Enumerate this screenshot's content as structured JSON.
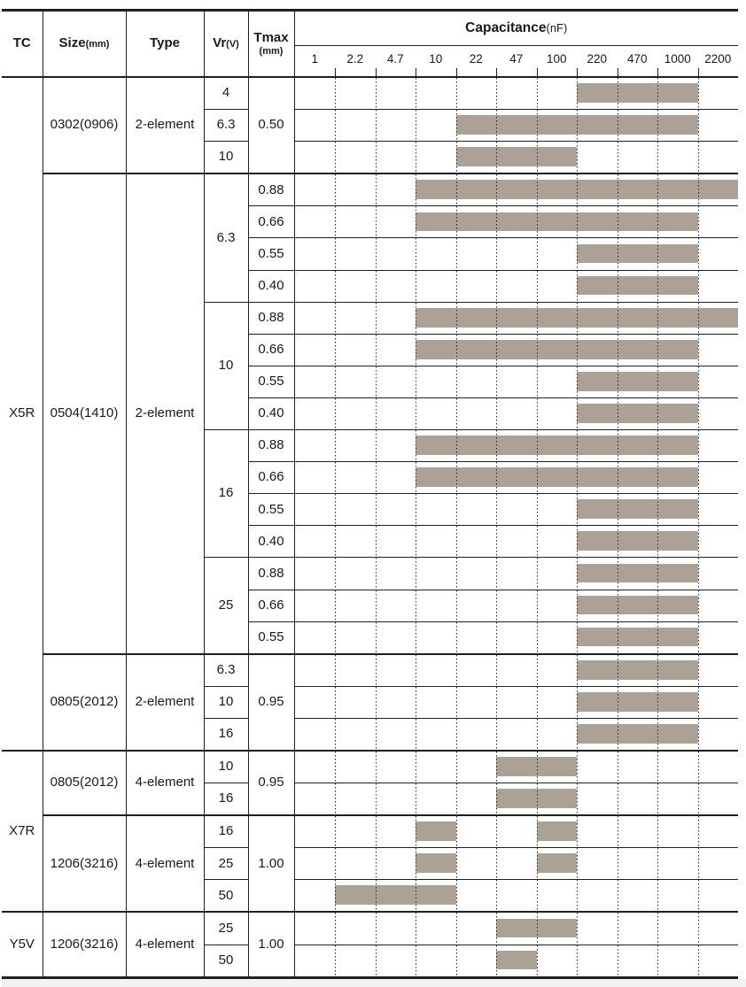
{
  "colors": {
    "bar": "#aca195",
    "border": "#1f1f1f",
    "grid_dot": "#2b2b2b",
    "footer_strip": "#f2f2f2",
    "text": "#1a1a1a"
  },
  "header": {
    "tc_label": "TC",
    "size_label": "Size",
    "size_unit": "(mm)",
    "type_label": "Type",
    "vr_label": "Vr",
    "vr_unit": "(V)",
    "tmax_label": "Tmax",
    "tmax_unit": "(mm)",
    "capacitance_label": "Capacitance",
    "capacitance_unit": "(nF)"
  },
  "chart_data": {
    "type": "range-bar",
    "x_scale": "log-categorical",
    "xlabel": "Capacitance(nF)",
    "scale_labels": [
      "1",
      "2.2",
      "4.7",
      "10",
      "22",
      "47",
      "100",
      "220",
      "470",
      "1000",
      "2200"
    ],
    "grid": "dotted-vertical-at-zone-boundaries",
    "bar_color": "#aca195",
    "sections": [
      {
        "tc": "X5R",
        "size_groups": [
          {
            "size": "0302(0906)",
            "type": "2-element",
            "tmax_shared": "0.50",
            "vr_groups": [
              {
                "vr": "4",
                "rows": [
                  {
                    "bars": [
                      [
                        "220",
                        "1000"
                      ]
                    ]
                  }
                ]
              },
              {
                "vr": "6.3",
                "rows": [
                  {
                    "bars": [
                      [
                        "22",
                        "1000"
                      ]
                    ]
                  }
                ]
              },
              {
                "vr": "10",
                "rows": [
                  {
                    "bars": [
                      [
                        "22",
                        "100"
                      ]
                    ]
                  }
                ]
              }
            ]
          },
          {
            "size": "0504(1410)",
            "type": "2-element",
            "vr_groups": [
              {
                "vr": "6.3",
                "rows": [
                  {
                    "tmax": "0.88",
                    "bars": [
                      [
                        "10",
                        "2200"
                      ]
                    ]
                  },
                  {
                    "tmax": "0.66",
                    "bars": [
                      [
                        "10",
                        "1000"
                      ]
                    ]
                  },
                  {
                    "tmax": "0.55",
                    "bars": [
                      [
                        "220",
                        "1000"
                      ]
                    ]
                  },
                  {
                    "tmax": "0.40",
                    "bars": [
                      [
                        "220",
                        "1000"
                      ]
                    ]
                  }
                ]
              },
              {
                "vr": "10",
                "rows": [
                  {
                    "tmax": "0.88",
                    "bars": [
                      [
                        "10",
                        "2200"
                      ]
                    ]
                  },
                  {
                    "tmax": "0.66",
                    "bars": [
                      [
                        "10",
                        "1000"
                      ]
                    ]
                  },
                  {
                    "tmax": "0.55",
                    "bars": [
                      [
                        "220",
                        "1000"
                      ]
                    ]
                  },
                  {
                    "tmax": "0.40",
                    "bars": [
                      [
                        "220",
                        "1000"
                      ]
                    ]
                  }
                ]
              },
              {
                "vr": "16",
                "rows": [
                  {
                    "tmax": "0.88",
                    "bars": [
                      [
                        "10",
                        "1000"
                      ]
                    ]
                  },
                  {
                    "tmax": "0.66",
                    "bars": [
                      [
                        "10",
                        "1000"
                      ]
                    ]
                  },
                  {
                    "tmax": "0.55",
                    "bars": [
                      [
                        "220",
                        "1000"
                      ]
                    ]
                  },
                  {
                    "tmax": "0.40",
                    "bars": [
                      [
                        "220",
                        "1000"
                      ]
                    ]
                  }
                ]
              },
              {
                "vr": "25",
                "rows": [
                  {
                    "tmax": "0.88",
                    "bars": [
                      [
                        "220",
                        "1000"
                      ]
                    ]
                  },
                  {
                    "tmax": "0.66",
                    "bars": [
                      [
                        "220",
                        "1000"
                      ]
                    ]
                  },
                  {
                    "tmax": "0.55",
                    "bars": [
                      [
                        "220",
                        "1000"
                      ]
                    ]
                  }
                ]
              }
            ]
          },
          {
            "size": "0805(2012)",
            "type": "2-element",
            "tmax_shared": "0.95",
            "vr_groups": [
              {
                "vr": "6.3",
                "rows": [
                  {
                    "bars": [
                      [
                        "220",
                        "1000"
                      ]
                    ]
                  }
                ]
              },
              {
                "vr": "10",
                "rows": [
                  {
                    "bars": [
                      [
                        "220",
                        "1000"
                      ]
                    ]
                  }
                ]
              },
              {
                "vr": "16",
                "rows": [
                  {
                    "bars": [
                      [
                        "220",
                        "1000"
                      ]
                    ]
                  }
                ]
              }
            ]
          }
        ]
      },
      {
        "tc": "X7R",
        "size_groups": [
          {
            "size": "0805(2012)",
            "type": "4-element",
            "tmax_shared": "0.95",
            "vr_groups": [
              {
                "vr": "10",
                "rows": [
                  {
                    "bars": [
                      [
                        "47",
                        "100"
                      ]
                    ]
                  }
                ]
              },
              {
                "vr": "16",
                "rows": [
                  {
                    "bars": [
                      [
                        "47",
                        "100"
                      ]
                    ]
                  }
                ]
              }
            ]
          },
          {
            "size": "1206(3216)",
            "type": "4-element",
            "tmax_shared": "1.00",
            "vr_groups": [
              {
                "vr": "16",
                "rows": [
                  {
                    "bars": [
                      [
                        "10",
                        "10"
                      ],
                      [
                        "100",
                        "100"
                      ]
                    ]
                  }
                ]
              },
              {
                "vr": "25",
                "rows": [
                  {
                    "bars": [
                      [
                        "10",
                        "10"
                      ],
                      [
                        "100",
                        "100"
                      ]
                    ]
                  }
                ]
              },
              {
                "vr": "50",
                "rows": [
                  {
                    "bars": [
                      [
                        "2.2",
                        "10"
                      ]
                    ]
                  }
                ]
              }
            ]
          }
        ]
      },
      {
        "tc": "Y5V",
        "size_groups": [
          {
            "size": "1206(3216)",
            "type": "4-element",
            "tmax_shared": "1.00",
            "vr_groups": [
              {
                "vr": "25",
                "rows": [
                  {
                    "bars": [
                      [
                        "47",
                        "100"
                      ]
                    ]
                  }
                ]
              },
              {
                "vr": "50",
                "rows": [
                  {
                    "bars": [
                      [
                        "47",
                        "47"
                      ]
                    ]
                  }
                ]
              }
            ]
          }
        ]
      }
    ]
  }
}
